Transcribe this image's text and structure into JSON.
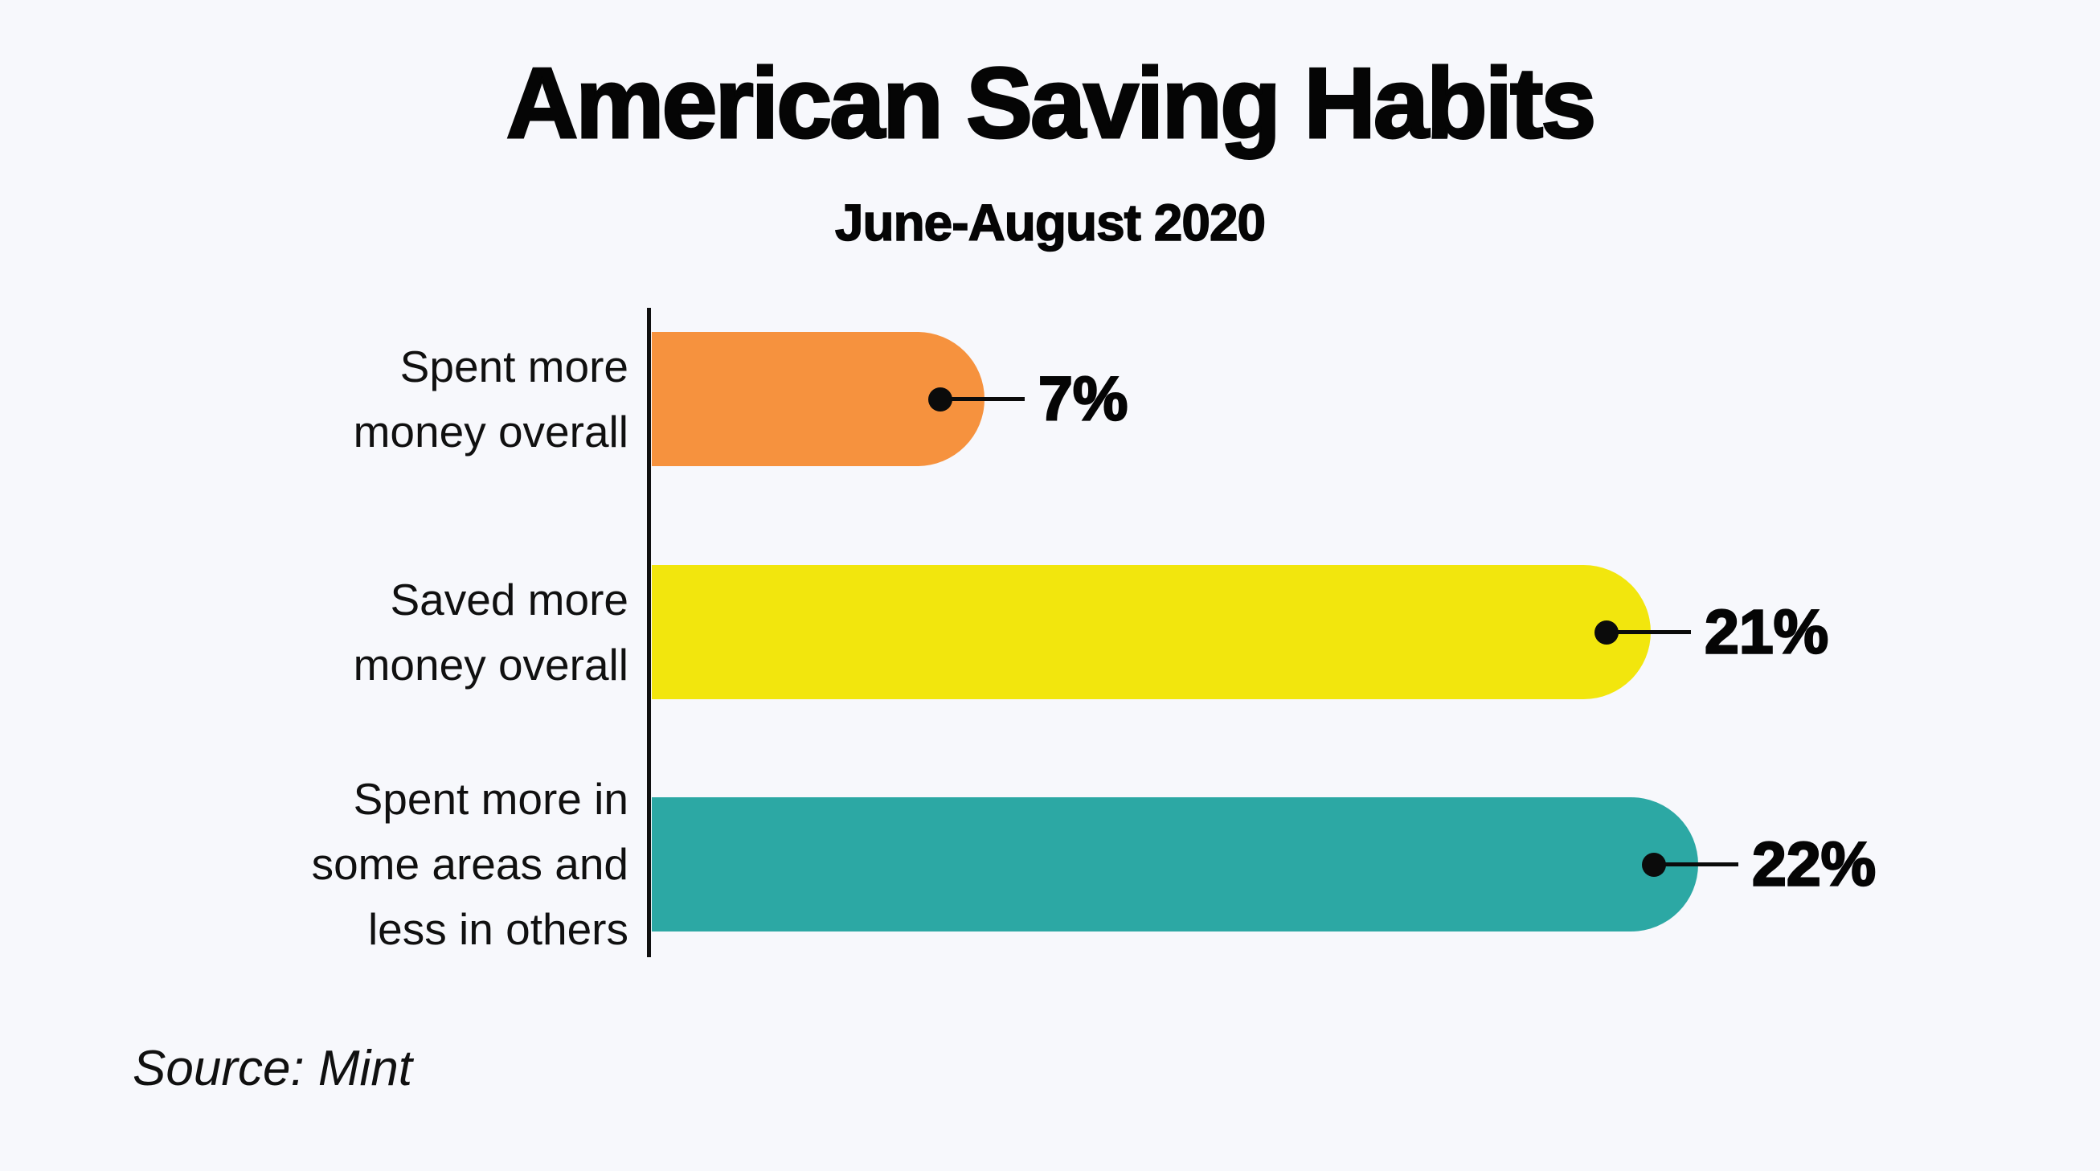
{
  "page": {
    "background_color": "#F7F8FC",
    "ink_color": "#0b0b0b"
  },
  "chart_data": {
    "type": "bar",
    "orientation": "horizontal",
    "title": "American Saving Habits",
    "subtitle": "June-August 2020",
    "source_label": "Source: Mint",
    "categories": [
      "Spent more money overall",
      "Saved more money overall",
      "Spent more in some areas and less in others"
    ],
    "category_lines": [
      [
        "Spent more",
        "money overall"
      ],
      [
        "Saved more",
        "money overall"
      ],
      [
        "Spent more in",
        "some areas and",
        "less in others"
      ]
    ],
    "values": [
      7,
      21,
      22
    ],
    "value_labels": [
      "7%",
      "21%",
      "22%"
    ],
    "value_unit": "%",
    "bar_colors": [
      "#F6923E",
      "#F2E60D",
      "#2CA8A4"
    ],
    "axis_color": "#101010",
    "callout_color": "#0b0b0b",
    "xlim": [
      0,
      30
    ],
    "grid": false,
    "legend": false
  }
}
